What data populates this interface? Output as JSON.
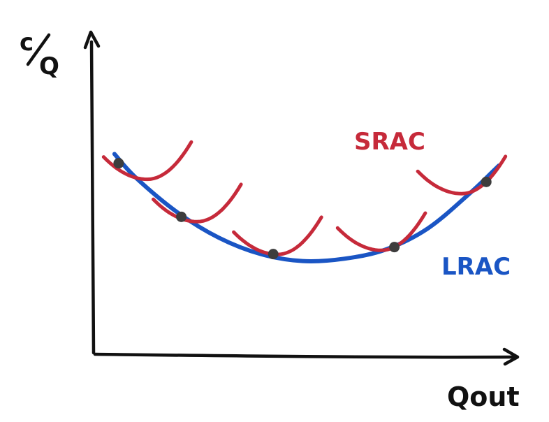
{
  "chart_data": {
    "type": "line",
    "title": "",
    "ylabel_num": "c",
    "ylabel_den": "Q",
    "xlabel": "Qout",
    "x_ticks": [],
    "y_ticks": [],
    "grid": false,
    "series": [
      {
        "name": "LRAC",
        "color": "#1a55c4",
        "x": [
          0.5,
          1,
          2,
          3,
          4,
          5,
          6,
          7,
          8,
          9,
          9.7
        ],
        "y": [
          8.6,
          7.6,
          6.1,
          5.0,
          4.3,
          4.0,
          4.1,
          4.5,
          5.4,
          6.9,
          8.1
        ]
      }
    ],
    "short_run_curves": {
      "name": "SRAC",
      "color": "#c62a3a",
      "tangent_points": [
        {
          "x": 0.6,
          "y": 8.2
        },
        {
          "x": 2.1,
          "y": 5.9
        },
        {
          "x": 4.3,
          "y": 4.3
        },
        {
          "x": 7.2,
          "y": 4.6
        },
        {
          "x": 9.4,
          "y": 7.4
        }
      ],
      "width": 2.1,
      "depth": 1.6
    },
    "tangent_point_color": "#3d3d3d",
    "xlim": [
      0,
      10.5
    ],
    "ylim": [
      0,
      15
    ]
  }
}
